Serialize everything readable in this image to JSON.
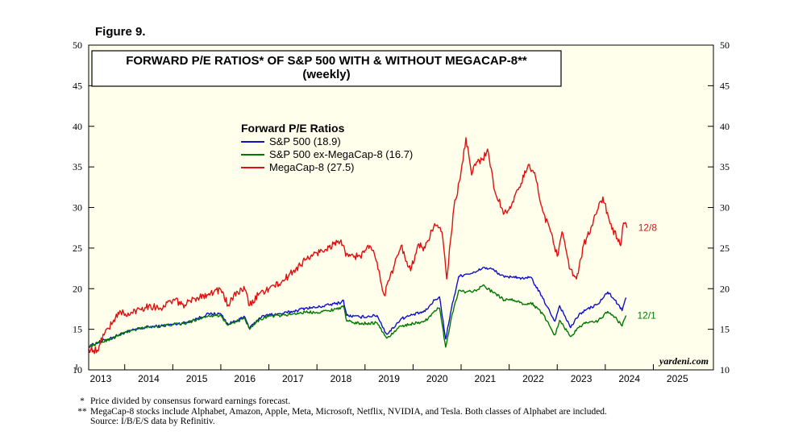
{
  "figure_label": "Figure 9.",
  "footnotes": [
    {
      "marker": "*",
      "text": "Price divided by consensus forward earnings forecast."
    },
    {
      "marker": "**",
      "text": "MegaCap-8 stocks include Alphabet, Amazon, Apple, Meta, Microsoft, Netflix, NVIDIA, and Tesla. Both classes of Alphabet are included."
    }
  ],
  "source": "Source: I/B/E/S data by Refinitiv.",
  "chart_data": {
    "type": "line",
    "title": "FORWARD P/E RATIOS* OF S&P 500 WITH & WITHOUT MEGACAP-8**",
    "subtitle": "(weekly)",
    "legend_title": "Forward P/E Ratios",
    "legend_position": "upper-left",
    "brand": "yardeni.com",
    "ylim": [
      10,
      50
    ],
    "yticks": [
      10,
      15,
      20,
      25,
      30,
      35,
      40,
      45,
      50
    ],
    "xlim": [
      2012.75,
      2025.75
    ],
    "xtick_labels": [
      "2013",
      "2014",
      "2015",
      "2016",
      "2017",
      "2018",
      "2019",
      "2020",
      "2021",
      "2022",
      "2023",
      "2024",
      "2025"
    ],
    "background_color": "#FFFFEC",
    "series": [
      {
        "name": "S&P 500 (18.9)",
        "color": "#1010C8",
        "end_label": "",
        "points": [
          [
            2012.75,
            12.9
          ],
          [
            2013.0,
            13.5
          ],
          [
            2013.25,
            14.0
          ],
          [
            2013.5,
            14.6
          ],
          [
            2013.75,
            15.0
          ],
          [
            2014.0,
            15.3
          ],
          [
            2014.25,
            15.4
          ],
          [
            2014.5,
            15.6
          ],
          [
            2014.75,
            15.8
          ],
          [
            2015.0,
            16.3
          ],
          [
            2015.25,
            16.9
          ],
          [
            2015.5,
            16.9
          ],
          [
            2015.65,
            15.6
          ],
          [
            2015.75,
            15.9
          ],
          [
            2016.0,
            16.5
          ],
          [
            2016.1,
            15.1
          ],
          [
            2016.3,
            16.4
          ],
          [
            2016.5,
            16.8
          ],
          [
            2016.75,
            16.9
          ],
          [
            2017.0,
            17.2
          ],
          [
            2017.25,
            17.6
          ],
          [
            2017.5,
            17.7
          ],
          [
            2017.75,
            18.0
          ],
          [
            2018.0,
            18.3
          ],
          [
            2018.05,
            18.6
          ],
          [
            2018.12,
            16.7
          ],
          [
            2018.4,
            16.5
          ],
          [
            2018.75,
            16.7
          ],
          [
            2018.95,
            14.4
          ],
          [
            2019.0,
            14.6
          ],
          [
            2019.25,
            16.3
          ],
          [
            2019.5,
            16.8
          ],
          [
            2019.75,
            17.2
          ],
          [
            2019.95,
            18.6
          ],
          [
            2020.05,
            19.0
          ],
          [
            2020.18,
            13.8
          ],
          [
            2020.3,
            17.6
          ],
          [
            2020.45,
            21.5
          ],
          [
            2020.6,
            21.8
          ],
          [
            2020.8,
            22.0
          ],
          [
            2020.95,
            22.6
          ],
          [
            2021.15,
            22.4
          ],
          [
            2021.4,
            21.4
          ],
          [
            2021.6,
            21.5
          ],
          [
            2021.8,
            21.2
          ],
          [
            2021.95,
            21.4
          ],
          [
            2022.2,
            18.8
          ],
          [
            2022.45,
            16.0
          ],
          [
            2022.55,
            17.9
          ],
          [
            2022.78,
            15.2
          ],
          [
            2022.95,
            16.8
          ],
          [
            2023.1,
            17.4
          ],
          [
            2023.35,
            18.1
          ],
          [
            2023.55,
            19.6
          ],
          [
            2023.7,
            18.6
          ],
          [
            2023.85,
            17.3
          ],
          [
            2023.93,
            18.9
          ]
        ]
      },
      {
        "name": "S&P 500 ex-MegaCap-8 (16.7)",
        "color": "#007800",
        "end_label": "12/1",
        "points": [
          [
            2012.75,
            12.9
          ],
          [
            2013.0,
            13.4
          ],
          [
            2013.25,
            13.9
          ],
          [
            2013.5,
            14.6
          ],
          [
            2013.75,
            15.0
          ],
          [
            2014.0,
            15.3
          ],
          [
            2014.25,
            15.4
          ],
          [
            2014.5,
            15.6
          ],
          [
            2014.75,
            15.7
          ],
          [
            2015.0,
            16.2
          ],
          [
            2015.25,
            16.7
          ],
          [
            2015.5,
            16.7
          ],
          [
            2015.65,
            15.5
          ],
          [
            2015.75,
            15.8
          ],
          [
            2016.0,
            16.3
          ],
          [
            2016.1,
            15.0
          ],
          [
            2016.3,
            16.2
          ],
          [
            2016.5,
            16.6
          ],
          [
            2016.75,
            16.7
          ],
          [
            2017.0,
            16.9
          ],
          [
            2017.25,
            17.1
          ],
          [
            2017.5,
            17.1
          ],
          [
            2017.75,
            17.3
          ],
          [
            2018.0,
            17.7
          ],
          [
            2018.05,
            17.9
          ],
          [
            2018.12,
            16.0
          ],
          [
            2018.4,
            15.7
          ],
          [
            2018.75,
            15.8
          ],
          [
            2018.95,
            13.9
          ],
          [
            2019.0,
            14.1
          ],
          [
            2019.25,
            15.4
          ],
          [
            2019.5,
            15.7
          ],
          [
            2019.75,
            16.0
          ],
          [
            2019.95,
            17.3
          ],
          [
            2020.05,
            17.6
          ],
          [
            2020.18,
            12.8
          ],
          [
            2020.3,
            16.5
          ],
          [
            2020.45,
            19.8
          ],
          [
            2020.6,
            19.6
          ],
          [
            2020.8,
            19.8
          ],
          [
            2020.95,
            20.4
          ],
          [
            2021.15,
            19.6
          ],
          [
            2021.4,
            18.6
          ],
          [
            2021.6,
            18.6
          ],
          [
            2021.8,
            18.1
          ],
          [
            2021.95,
            18.3
          ],
          [
            2022.2,
            16.9
          ],
          [
            2022.45,
            14.3
          ],
          [
            2022.55,
            16.1
          ],
          [
            2022.78,
            14.1
          ],
          [
            2022.95,
            15.2
          ],
          [
            2023.1,
            15.9
          ],
          [
            2023.35,
            16.0
          ],
          [
            2023.55,
            17.2
          ],
          [
            2023.7,
            16.5
          ],
          [
            2023.85,
            15.4
          ],
          [
            2023.93,
            16.7
          ]
        ]
      },
      {
        "name": "MegaCap-8 (27.5)",
        "color": "#E01010",
        "end_label": "12/8",
        "points": [
          [
            2012.75,
            12.6
          ],
          [
            2012.95,
            12.3
          ],
          [
            2013.05,
            14.4
          ],
          [
            2013.25,
            15.8
          ],
          [
            2013.4,
            17.3
          ],
          [
            2013.55,
            16.6
          ],
          [
            2013.75,
            17.4
          ],
          [
            2014.0,
            17.9
          ],
          [
            2014.25,
            17.6
          ],
          [
            2014.5,
            18.6
          ],
          [
            2014.75,
            18.0
          ],
          [
            2015.0,
            18.9
          ],
          [
            2015.25,
            19.4
          ],
          [
            2015.5,
            19.9
          ],
          [
            2015.65,
            18.0
          ],
          [
            2015.85,
            19.6
          ],
          [
            2016.0,
            19.9
          ],
          [
            2016.1,
            17.9
          ],
          [
            2016.3,
            19.4
          ],
          [
            2016.5,
            20.0
          ],
          [
            2016.75,
            20.7
          ],
          [
            2017.0,
            22.1
          ],
          [
            2017.25,
            23.5
          ],
          [
            2017.5,
            24.4
          ],
          [
            2017.75,
            25.1
          ],
          [
            2018.0,
            26.0
          ],
          [
            2018.1,
            24.0
          ],
          [
            2018.4,
            24.0
          ],
          [
            2018.6,
            25.3
          ],
          [
            2018.75,
            23.3
          ],
          [
            2018.9,
            19.2
          ],
          [
            2019.0,
            21.0
          ],
          [
            2019.25,
            25.3
          ],
          [
            2019.45,
            22.2
          ],
          [
            2019.6,
            25.4
          ],
          [
            2019.75,
            25.0
          ],
          [
            2019.95,
            28.0
          ],
          [
            2020.1,
            27.0
          ],
          [
            2020.2,
            21.2
          ],
          [
            2020.35,
            30.0
          ],
          [
            2020.48,
            33.5
          ],
          [
            2020.6,
            38.6
          ],
          [
            2020.72,
            34.0
          ],
          [
            2020.82,
            35.6
          ],
          [
            2020.95,
            36.0
          ],
          [
            2021.05,
            37.2
          ],
          [
            2021.2,
            32.0
          ],
          [
            2021.4,
            29.3
          ],
          [
            2021.55,
            30.3
          ],
          [
            2021.75,
            33.0
          ],
          [
            2021.9,
            35.3
          ],
          [
            2022.05,
            33.7
          ],
          [
            2022.2,
            29.5
          ],
          [
            2022.4,
            26.5
          ],
          [
            2022.5,
            24.0
          ],
          [
            2022.6,
            27.0
          ],
          [
            2022.75,
            22.5
          ],
          [
            2022.9,
            21.2
          ],
          [
            2023.05,
            25.4
          ],
          [
            2023.2,
            27.5
          ],
          [
            2023.35,
            29.8
          ],
          [
            2023.45,
            31.3
          ],
          [
            2023.6,
            28.0
          ],
          [
            2023.75,
            26.2
          ],
          [
            2023.82,
            25.3
          ],
          [
            2023.88,
            28.1
          ],
          [
            2023.95,
            27.5
          ]
        ]
      }
    ]
  }
}
